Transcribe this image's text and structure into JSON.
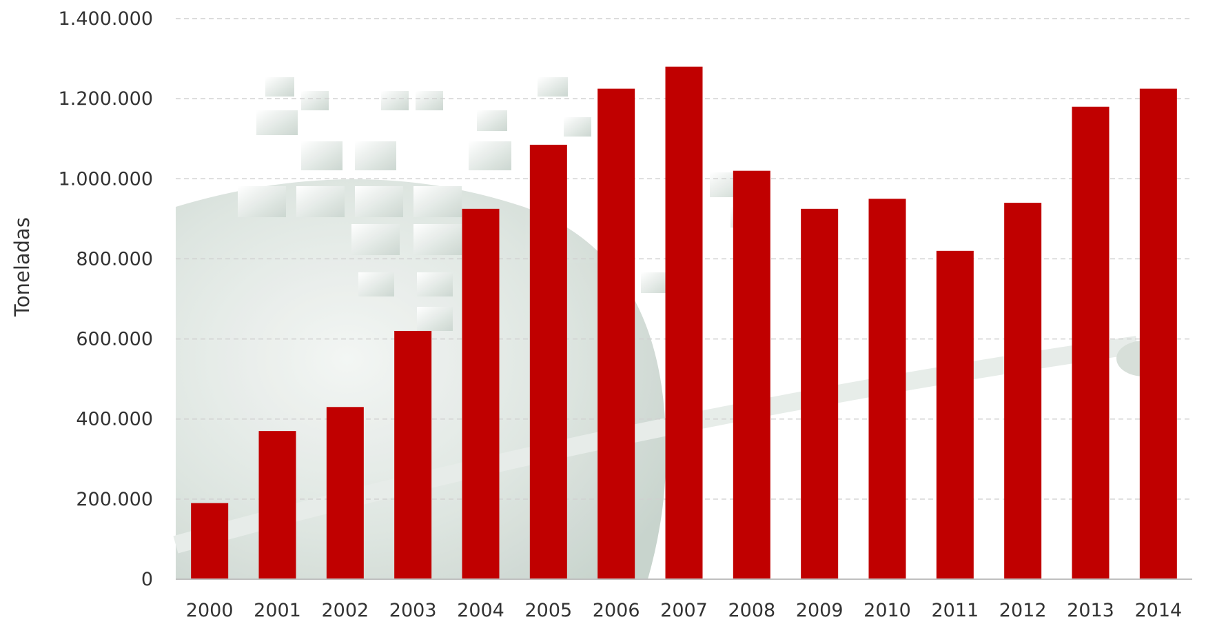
{
  "chart_data": {
    "type": "bar",
    "title": "",
    "xlabel": "",
    "ylabel": "Toneladas",
    "categories": [
      "2000",
      "2001",
      "2002",
      "2003",
      "2004",
      "2005",
      "2006",
      "2007",
      "2008",
      "2009",
      "2010",
      "2011",
      "2012",
      "2013",
      "2014"
    ],
    "values": [
      190000,
      370000,
      430000,
      620000,
      925000,
      1085000,
      1225000,
      1280000,
      1020000,
      925000,
      950000,
      820000,
      940000,
      1180000,
      1225000
    ],
    "ylim": [
      0,
      1400000
    ],
    "yticks": [
      0,
      200000,
      400000,
      600000,
      800000,
      1000000,
      1200000,
      1400000
    ],
    "ytick_labels": [
      "0",
      "200.000",
      "400.000",
      "600.000",
      "800.000",
      "1.000.000",
      "1.200.000",
      "1.400.000"
    ],
    "grid": true,
    "legend": "none",
    "colors": {
      "bar": "#C00000",
      "grid": "#D0D0D0",
      "axis": "#BFBFBF",
      "background_art": "#D9E2DC"
    }
  }
}
